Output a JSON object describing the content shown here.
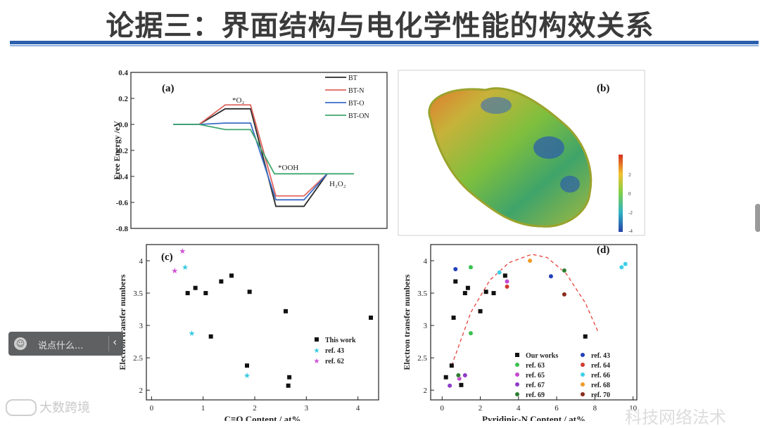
{
  "slide": {
    "title": "论据三：界面结构与电化学性能的构效关系"
  },
  "comment_bar": {
    "placeholder": "说点什么...",
    "collapse_icon": "chevron-left-icon"
  },
  "watermark": {
    "text": "大数跨境",
    "text2": "科技网络法术"
  },
  "colors": {
    "accent_rule": "#2b5fae",
    "title_text": "#3b3b3b"
  },
  "chart_data": [
    {
      "panel": "(a)",
      "type": "line",
      "ylabel": "Free Energy /eV",
      "ylim": [
        -0.8,
        0.4
      ],
      "yticks": [
        "0.4",
        "0.2",
        "0.0",
        "-0.2",
        "-0.4",
        "-0.6",
        "-0.8"
      ],
      "annotations": [
        "*O₂",
        "*OOH",
        "H₂O₂"
      ],
      "series": [
        {
          "name": "BT",
          "color": "#2a2a2a",
          "values": [
            0,
            0,
            0.12,
            -0.63,
            -0.38
          ]
        },
        {
          "name": "BT-N",
          "color": "#e0655e",
          "values": [
            0,
            0,
            0.15,
            -0.55,
            -0.38
          ]
        },
        {
          "name": "BT-O",
          "color": "#3a6cc6",
          "values": [
            0,
            0,
            0.01,
            -0.58,
            -0.38
          ]
        },
        {
          "name": "BT-ON",
          "color": "#3ea76f",
          "values": [
            0,
            0,
            -0.04,
            -0.38,
            -0.38
          ]
        }
      ]
    },
    {
      "panel": "(b)",
      "type": "heatmap",
      "colorbar_ticks": [
        "2",
        "0",
        "-2",
        "-4"
      ]
    },
    {
      "panel": "(c)",
      "type": "scatter",
      "xlabel": "C≡O Content / at%",
      "ylabel": "Electron transfer numbers",
      "xlim": [
        -0.1,
        4.4
      ],
      "ylim": [
        1.85,
        4.25
      ],
      "xticks": [
        "0",
        "1",
        "2",
        "3",
        "4"
      ],
      "yticks": [
        "2",
        "2.5",
        "3",
        "3.5",
        "4"
      ],
      "series": [
        {
          "name": "This work",
          "color": "#111111",
          "marker": "square",
          "points": [
            [
              0.7,
              3.5
            ],
            [
              0.85,
              3.58
            ],
            [
              1.05,
              3.5
            ],
            [
              1.15,
              2.83
            ],
            [
              1.35,
              3.68
            ],
            [
              1.55,
              3.77
            ],
            [
              1.85,
              2.38
            ],
            [
              1.9,
              3.52
            ],
            [
              2.6,
              3.22
            ],
            [
              2.65,
              2.07
            ],
            [
              2.67,
              2.2
            ],
            [
              4.25,
              3.12
            ]
          ]
        },
        {
          "name": "ref. 43",
          "color": "#35c9df",
          "marker": "star",
          "points": [
            [
              0.65,
              3.9
            ],
            [
              0.78,
              2.88
            ],
            [
              1.85,
              2.23
            ]
          ]
        },
        {
          "name": "ref. 62",
          "color": "#d04fd6",
          "marker": "star",
          "points": [
            [
              0.45,
              3.85
            ],
            [
              0.6,
              4.15
            ]
          ]
        }
      ]
    },
    {
      "panel": "(d)",
      "type": "scatter",
      "xlabel": "Pyridinic-N Content / at%",
      "ylabel": "Electron transfer numbers",
      "xlim": [
        -0.6,
        10.2
      ],
      "ylim": [
        1.85,
        4.25
      ],
      "xticks": [
        "0",
        "2",
        "4",
        "6",
        "8",
        "10"
      ],
      "yticks": [
        "2",
        "2.5",
        "3",
        "3.5",
        "4"
      ],
      "series": [
        {
          "name": "Our works",
          "color": "#111111",
          "marker": "square",
          "points": [
            [
              0.2,
              2.2
            ],
            [
              0.5,
              2.38
            ],
            [
              0.6,
              3.12
            ],
            [
              0.7,
              3.68
            ],
            [
              1.0,
              2.08
            ],
            [
              1.2,
              3.5
            ],
            [
              1.35,
              3.58
            ],
            [
              2.0,
              3.22
            ],
            [
              2.3,
              3.52
            ],
            [
              2.7,
              3.5
            ],
            [
              3.3,
              3.77
            ],
            [
              7.5,
              2.83
            ]
          ]
        },
        {
          "name": "ref. 43",
          "color": "#2340b8",
          "marker": "sphere",
          "points": [
            [
              0.7,
              3.87
            ],
            [
              5.7,
              3.76
            ]
          ]
        },
        {
          "name": "ref. 63",
          "color": "#39c24e",
          "marker": "sphere",
          "points": [
            [
              1.5,
              2.88
            ],
            [
              1.5,
              3.9
            ]
          ]
        },
        {
          "name": "ref. 64",
          "color": "#d23b2f",
          "marker": "sphere",
          "points": [
            [
              3.4,
              3.6
            ]
          ]
        },
        {
          "name": "ref. 65",
          "color": "#c449d2",
          "marker": "sphere",
          "points": [
            [
              0.9,
              2.18
            ],
            [
              3.4,
              3.68
            ]
          ]
        },
        {
          "name": "ref. 66",
          "color": "#3fd0e6",
          "marker": "sphere",
          "points": [
            [
              3.0,
              3.82
            ],
            [
              9.4,
              3.9
            ],
            [
              9.6,
              3.95
            ]
          ]
        },
        {
          "name": "ref. 67",
          "color": "#8d3cc9",
          "marker": "sphere",
          "points": [
            [
              0.4,
              2.07
            ],
            [
              1.2,
              2.23
            ]
          ]
        },
        {
          "name": "ref. 68",
          "color": "#f09a28",
          "marker": "sphere",
          "points": [
            [
              4.6,
              4.0
            ]
          ]
        },
        {
          "name": "ref. 69",
          "color": "#2e7d32",
          "marker": "sphere",
          "points": [
            [
              0.85,
              2.23
            ],
            [
              6.4,
              3.85
            ]
          ]
        },
        {
          "name": "ref. 70",
          "color": "#8a2b1c",
          "marker": "sphere",
          "points": [
            [
              6.4,
              3.48
            ]
          ]
        }
      ],
      "fit": {
        "color": "#e8433a",
        "style": "dashed",
        "points": [
          [
            0.5,
            2.38
          ],
          [
            1.5,
            3.2
          ],
          [
            2.5,
            3.7
          ],
          [
            3.5,
            3.97
          ],
          [
            4.7,
            4.1
          ],
          [
            5.5,
            4.05
          ],
          [
            6.5,
            3.8
          ],
          [
            7.5,
            3.35
          ],
          [
            8.2,
            2.88
          ]
        ]
      }
    }
  ]
}
